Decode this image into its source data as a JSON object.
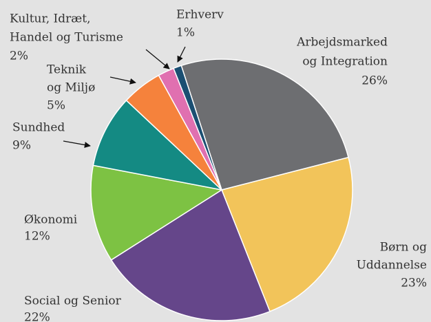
{
  "chart_data": {
    "type": "pie",
    "categories": [
      [
        "Arbejdsmarked",
        "og Integration"
      ],
      [
        "Børn og",
        "Uddannelse"
      ],
      [
        "Social og Senior"
      ],
      [
        "Økonomi"
      ],
      [
        "Sundhed"
      ],
      [
        "Teknik",
        "og Miljø"
      ],
      [
        "Kultur, Idræt,",
        "Handel og Turisme"
      ],
      [
        "Erhverv"
      ]
    ],
    "values": [
      26,
      23,
      22,
      12,
      9,
      5,
      2,
      1
    ],
    "value_labels": [
      "26%",
      "23%",
      "22%",
      "12%",
      "9%",
      "5%",
      "2%",
      "1%"
    ],
    "colors": [
      "#6d6e71",
      "#f2c45a",
      "#65468a",
      "#7dc243",
      "#148a83",
      "#f5823c",
      "#e070b0",
      "#1b4f72"
    ]
  }
}
